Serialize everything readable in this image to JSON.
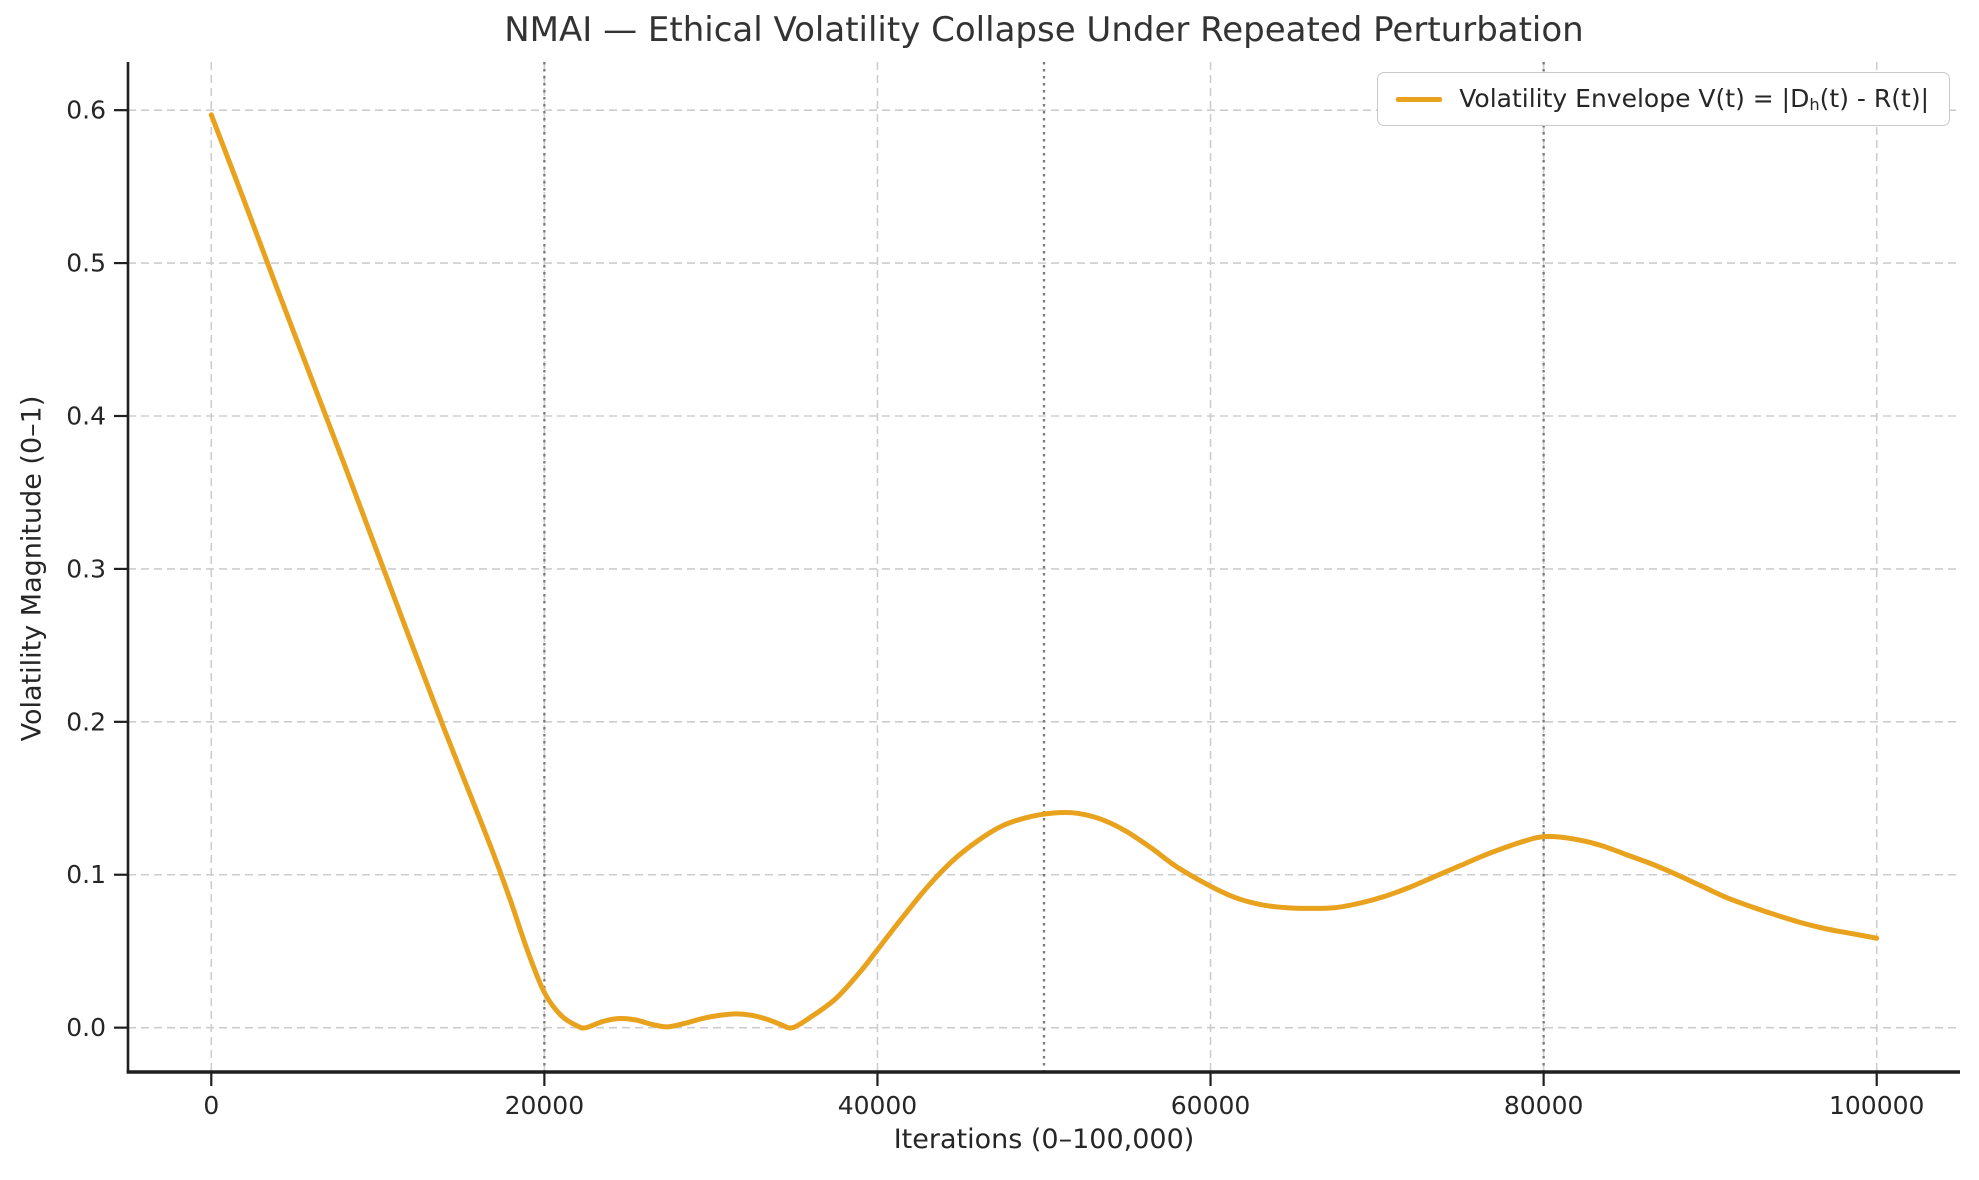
{
  "chart_data": {
    "type": "line",
    "title": "NMAI — Ethical Volatility Collapse Under Repeated Perturbation",
    "xlabel": "Iterations (0–100,000)",
    "ylabel": "Volatility Magnitude (0–1)",
    "xlim": [
      -5000,
      105000
    ],
    "ylim": [
      -0.029,
      0.6315
    ],
    "grid": true,
    "x_ticks": [
      0,
      20000,
      40000,
      60000,
      80000,
      100000
    ],
    "x_tick_labels": [
      "0",
      "20000",
      "40000",
      "60000",
      "80000",
      "100000"
    ],
    "y_ticks": [
      0.0,
      0.1,
      0.2,
      0.3,
      0.4,
      0.5,
      0.6
    ],
    "y_tick_labels": [
      "0.0",
      "0.1",
      "0.2",
      "0.3",
      "0.4",
      "0.5",
      "0.6"
    ],
    "event_lines": {
      "x": [
        20000,
        50000,
        80000
      ],
      "style": "dotted",
      "color": "#7a7a7a"
    },
    "legend": {
      "position": "top-right",
      "label": "Volatility Envelope V(t) = |Dₕ(t) - R(t)|",
      "label_pre": "Volatility Envelope V(t) = |D",
      "label_sub": "h",
      "label_post": "(t) - R(t)|"
    },
    "style": {
      "line_color": "#E8A21D",
      "line_width": 5,
      "grid_color": "#cdcdcd",
      "event_line_color": "#7a7a7a",
      "spine_color": "#1f1f1f",
      "text_color": "#262626"
    },
    "series": [
      {
        "name": "Volatility Envelope V(t) = |Dh(t) - R(t)|",
        "color": "#E8A21D",
        "x": [
          0,
          2000,
          4000,
          6000,
          8000,
          10000,
          12000,
          14000,
          16000,
          17000,
          18000,
          19000,
          20000,
          21000,
          22000,
          22500,
          23500,
          24500,
          25500,
          26500,
          27400,
          28500,
          29500,
          30500,
          31500,
          32500,
          33500,
          34200,
          34900,
          36000,
          37500,
          39000,
          40000,
          41500,
          43000,
          44500,
          46000,
          47500,
          49000,
          50500,
          52000,
          53500,
          55000,
          56500,
          58000,
          60000,
          61500,
          63000,
          64500,
          66000,
          67500,
          69000,
          70500,
          72000,
          73500,
          75000,
          76500,
          78000,
          79500,
          80500,
          82000,
          83500,
          85000,
          86500,
          88000,
          89500,
          91000,
          92500,
          94000,
          95500,
          97000,
          98500,
          100000
        ],
        "y": [
          0.597,
          0.54,
          0.482,
          0.425,
          0.368,
          0.31,
          0.252,
          0.195,
          0.14,
          0.112,
          0.082,
          0.05,
          0.023,
          0.008,
          0.001,
          0.0,
          0.004,
          0.006,
          0.005,
          0.002,
          0.0005,
          0.003,
          0.006,
          0.008,
          0.009,
          0.008,
          0.005,
          0.002,
          0.0,
          0.007,
          0.019,
          0.037,
          0.051,
          0.072,
          0.092,
          0.109,
          0.122,
          0.132,
          0.1375,
          0.1403,
          0.1402,
          0.136,
          0.128,
          0.117,
          0.105,
          0.0925,
          0.085,
          0.0805,
          0.0785,
          0.078,
          0.0785,
          0.0815,
          0.086,
          0.092,
          0.099,
          0.106,
          0.113,
          0.119,
          0.124,
          0.125,
          0.123,
          0.119,
          0.113,
          0.107,
          0.1,
          0.0925,
          0.085,
          0.079,
          0.0735,
          0.0685,
          0.0645,
          0.0615,
          0.0585
        ]
      }
    ]
  }
}
